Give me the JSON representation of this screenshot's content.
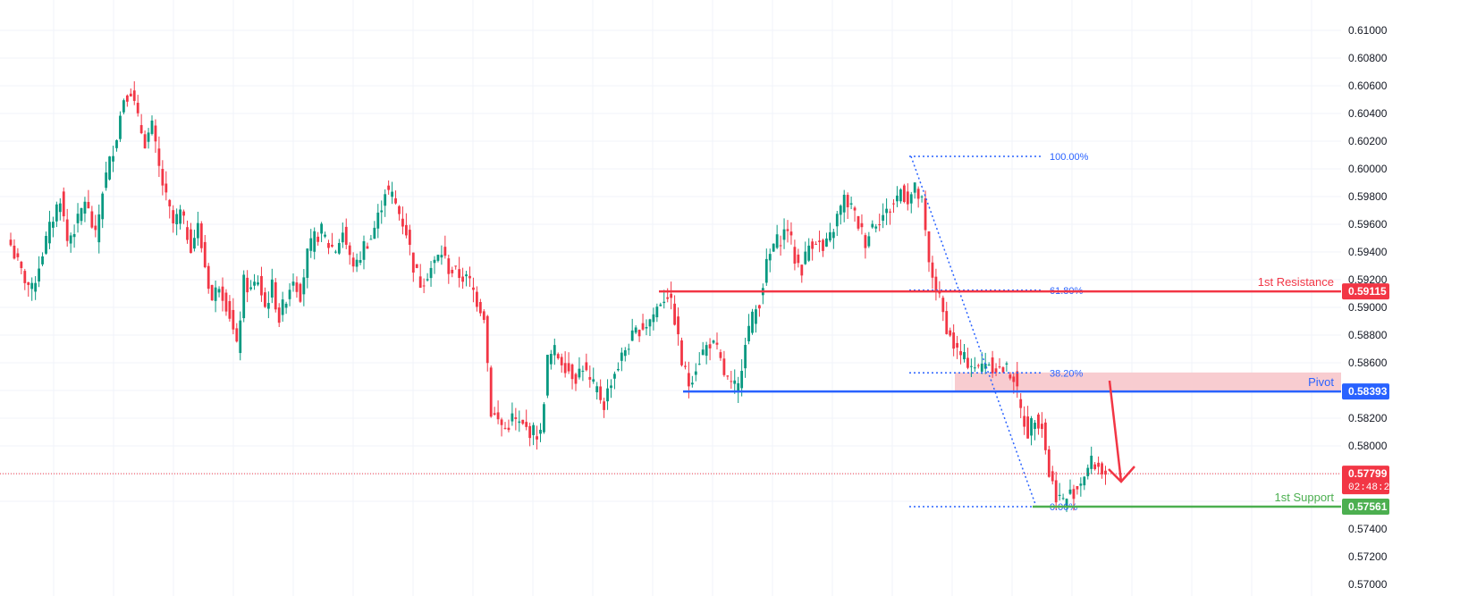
{
  "chart_data": {
    "type": "candlestick",
    "title": "",
    "xlabel": "",
    "ylabel": "",
    "ylim": [
      0.5696,
      0.6126
    ],
    "grid": true,
    "yticks": [
      "0.61000",
      "0.60800",
      "0.60600",
      "0.60400",
      "0.60200",
      "0.60000",
      "0.59800",
      "0.59600",
      "0.59400",
      "0.59200",
      "0.59000",
      "0.58800",
      "0.58600",
      "0.58200",
      "0.58000",
      "0.57400",
      "0.57200",
      "0.57000"
    ],
    "anchors": [
      [
        0,
        0.5945
      ],
      [
        3,
        0.5925
      ],
      [
        6,
        0.5912
      ],
      [
        9,
        0.594
      ],
      [
        12,
        0.5965
      ],
      [
        14,
        0.598
      ],
      [
        16,
        0.5948
      ],
      [
        19,
        0.5962
      ],
      [
        21,
        0.5978
      ],
      [
        24,
        0.595
      ],
      [
        26,
        0.5985
      ],
      [
        28,
        0.6005
      ],
      [
        30,
        0.6025
      ],
      [
        32,
        0.6052
      ],
      [
        34,
        0.6057
      ],
      [
        36,
        0.6035
      ],
      [
        38,
        0.602
      ],
      [
        40,
        0.603
      ],
      [
        42,
        0.6
      ],
      [
        44,
        0.5978
      ],
      [
        46,
        0.596
      ],
      [
        48,
        0.5968
      ],
      [
        51,
        0.5945
      ],
      [
        53,
        0.5958
      ],
      [
        55,
        0.593
      ],
      [
        57,
        0.5905
      ],
      [
        59,
        0.5918
      ],
      [
        62,
        0.5895
      ],
      [
        64,
        0.587
      ],
      [
        66,
        0.5918
      ],
      [
        68,
        0.5912
      ],
      [
        70,
        0.592
      ],
      [
        72,
        0.59
      ],
      [
        74,
        0.5915
      ],
      [
        76,
        0.5892
      ],
      [
        78,
        0.5908
      ],
      [
        80,
        0.5922
      ],
      [
        82,
        0.591
      ],
      [
        84,
        0.5938
      ],
      [
        86,
        0.595
      ],
      [
        88,
        0.5955
      ],
      [
        90,
        0.5945
      ],
      [
        92,
        0.5942
      ],
      [
        94,
        0.5955
      ],
      [
        96,
        0.5935
      ],
      [
        98,
        0.593
      ],
      [
        100,
        0.5945
      ],
      [
        102,
        0.595
      ],
      [
        104,
        0.5965
      ],
      [
        106,
        0.5985
      ],
      [
        108,
        0.598
      ],
      [
        110,
        0.5968
      ],
      [
        112,
        0.5955
      ],
      [
        114,
        0.593
      ],
      [
        116,
        0.5918
      ],
      [
        118,
        0.5925
      ],
      [
        120,
        0.5932
      ],
      [
        122,
        0.594
      ],
      [
        124,
        0.5928
      ],
      [
        126,
        0.5925
      ],
      [
        128,
        0.5922
      ],
      [
        130,
        0.5918
      ],
      [
        132,
        0.5905
      ],
      [
        134,
        0.5895
      ],
      [
        136,
        0.5825
      ],
      [
        138,
        0.5818
      ],
      [
        140,
        0.5812
      ],
      [
        142,
        0.582
      ],
      [
        144,
        0.5815
      ],
      [
        146,
        0.5812
      ],
      [
        148,
        0.581
      ],
      [
        150,
        0.5808
      ],
      [
        152,
        0.5862
      ],
      [
        154,
        0.5868
      ],
      [
        156,
        0.5862
      ],
      [
        158,
        0.5855
      ],
      [
        160,
        0.585
      ],
      [
        162,
        0.5858
      ],
      [
        164,
        0.5845
      ],
      [
        166,
        0.584
      ],
      [
        168,
        0.583
      ],
      [
        170,
        0.5848
      ],
      [
        172,
        0.5858
      ],
      [
        174,
        0.587
      ],
      [
        176,
        0.5878
      ],
      [
        178,
        0.5885
      ],
      [
        180,
        0.5888
      ],
      [
        182,
        0.5895
      ],
      [
        184,
        0.5905
      ],
      [
        186,
        0.591
      ],
      [
        188,
        0.5892
      ],
      [
        190,
        0.586
      ],
      [
        192,
        0.5845
      ],
      [
        194,
        0.5858
      ],
      [
        196,
        0.5868
      ],
      [
        198,
        0.5875
      ],
      [
        200,
        0.5868
      ],
      [
        202,
        0.5852
      ],
      [
        204,
        0.5842
      ],
      [
        206,
        0.5842
      ],
      [
        208,
        0.5878
      ],
      [
        210,
        0.5892
      ],
      [
        212,
        0.5905
      ],
      [
        214,
        0.593
      ],
      [
        216,
        0.5945
      ],
      [
        218,
        0.595
      ],
      [
        220,
        0.5958
      ],
      [
        222,
        0.5935
      ],
      [
        224,
        0.5928
      ],
      [
        226,
        0.5945
      ],
      [
        228,
        0.595
      ],
      [
        230,
        0.594
      ],
      [
        232,
        0.595
      ],
      [
        234,
        0.5965
      ],
      [
        236,
        0.5978
      ],
      [
        238,
        0.5972
      ],
      [
        240,
        0.596
      ],
      [
        242,
        0.5948
      ],
      [
        244,
        0.596
      ],
      [
        246,
        0.5965
      ],
      [
        248,
        0.5968
      ],
      [
        250,
        0.5975
      ],
      [
        252,
        0.5985
      ],
      [
        254,
        0.5978
      ],
      [
        256,
        0.5985
      ],
      [
        258,
        0.5975
      ],
      [
        260,
        0.593
      ],
      [
        262,
        0.5915
      ],
      [
        264,
        0.5895
      ],
      [
        266,
        0.5878
      ],
      [
        268,
        0.5868
      ],
      [
        270,
        0.5862
      ],
      [
        272,
        0.586
      ],
      [
        274,
        0.5855
      ],
      [
        276,
        0.5862
      ],
      [
        278,
        0.5858
      ],
      [
        280,
        0.5855
      ],
      [
        282,
        0.5855
      ],
      [
        284,
        0.585
      ],
      [
        286,
        0.5825
      ],
      [
        288,
        0.581
      ],
      [
        290,
        0.5822
      ],
      [
        292,
        0.5815
      ],
      [
        294,
        0.578
      ],
      [
        296,
        0.5765
      ],
      [
        298,
        0.576
      ],
      [
        300,
        0.5765
      ],
      [
        302,
        0.577
      ],
      [
        304,
        0.578
      ],
      [
        306,
        0.5788
      ],
      [
        308,
        0.5785
      ],
      [
        310,
        0.578
      ]
    ],
    "current_price": {
      "value": 0.57799,
      "label": "0.57799",
      "countdown": "02:48:21"
    },
    "levels": [
      {
        "name": "1st Resistance",
        "label": "0.59115",
        "value": 0.59115,
        "color": "#f23645"
      },
      {
        "name": "Pivot",
        "label": "0.58393",
        "value": 0.58393,
        "color": "#2962ff",
        "zone_top": 0.5853
      },
      {
        "name": "1st Support",
        "label": "0.57561",
        "value": 0.57561,
        "color": "#4caf50"
      }
    ],
    "fibonacci": {
      "high": 0.6009,
      "low": 0.57561,
      "color": "#2962ff",
      "ratios": [
        {
          "label": "100.00%",
          "ratio": 1.0
        },
        {
          "label": "61.80%",
          "ratio": 0.618
        },
        {
          "label": "38.20%",
          "ratio": 0.382
        },
        {
          "label": "0.00%",
          "ratio": 0.0
        }
      ]
    },
    "colors": {
      "up": "#089981",
      "down": "#f23645",
      "grid": "#f0f3fa",
      "zone": "#f7c7cb",
      "arrow": "#f23645"
    }
  }
}
